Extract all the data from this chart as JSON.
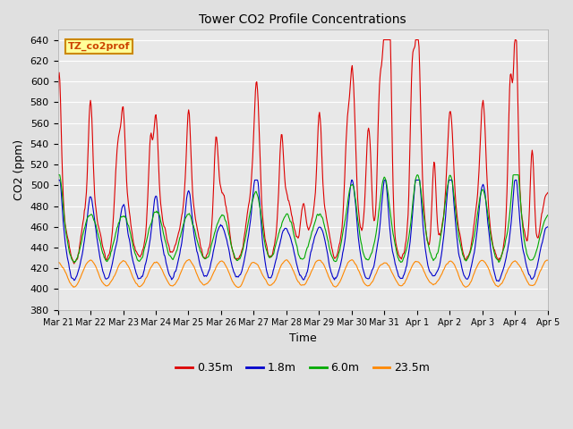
{
  "title": "Tower CO2 Profile Concentrations",
  "xlabel": "Time",
  "ylabel": "CO2 (ppm)",
  "ylim": [
    380,
    650
  ],
  "yticks": [
    380,
    400,
    420,
    440,
    460,
    480,
    500,
    520,
    540,
    560,
    580,
    600,
    620,
    640
  ],
  "annotation_label": "TZ_co2prof",
  "annotation_color": "#ffff99",
  "annotation_border": "#cc8800",
  "annotation_text_color": "#cc4400",
  "series_colors": [
    "#dd0000",
    "#0000cc",
    "#00aa00",
    "#ff8800"
  ],
  "series_labels": [
    "0.35m",
    "1.8m",
    "6.0m",
    "23.5m"
  ],
  "background_color": "#e8e8e8",
  "grid_color": "#ffffff",
  "xtick_labels": [
    "Mar 21",
    "Mar 22",
    "Mar 23",
    "Mar 24",
    "Mar 25",
    "Mar 26",
    "Mar 27",
    "Mar 28",
    "Mar 29",
    "Mar 30",
    "Mar 31",
    "Apr 1",
    "Apr 2",
    "Apr 3",
    "Apr 4",
    "Apr 5"
  ],
  "seed": 42,
  "n_days": 15,
  "pts_per_day": 48
}
